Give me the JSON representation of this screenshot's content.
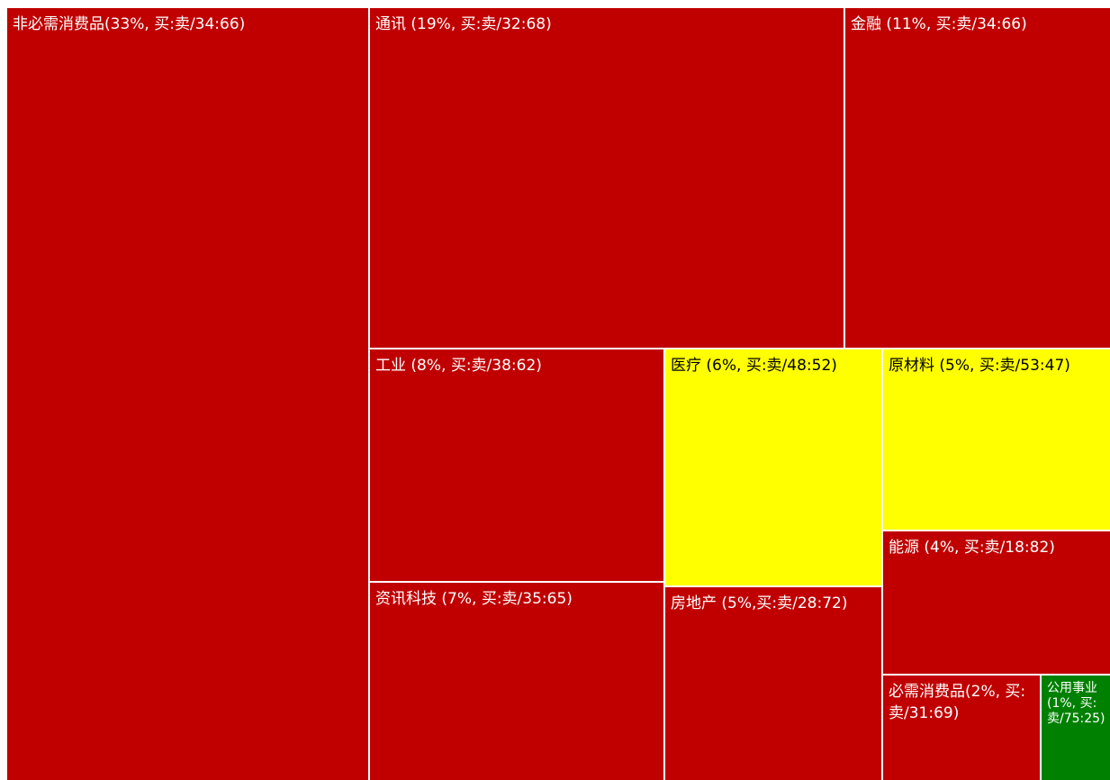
{
  "chart_data": {
    "type": "treemap",
    "colors": {
      "red": "#c00000",
      "yellow": "#ffff00",
      "green": "#008000"
    },
    "items": [
      {
        "label": "非必需消费品(33%, 买:卖/34:66)",
        "weight_pct": 33,
        "buy": 34,
        "sell": 66,
        "color": "red"
      },
      {
        "label": "通讯 (19%, 买:卖/32:68)",
        "weight_pct": 19,
        "buy": 32,
        "sell": 68,
        "color": "red"
      },
      {
        "label": "金融 (11%, 买:卖/34:66)",
        "weight_pct": 11,
        "buy": 34,
        "sell": 66,
        "color": "red"
      },
      {
        "label": "工业 (8%, 买:卖/38:62)",
        "weight_pct": 8,
        "buy": 38,
        "sell": 62,
        "color": "red"
      },
      {
        "label": "医疗 (6%, 买:卖/48:52)",
        "weight_pct": 6,
        "buy": 48,
        "sell": 52,
        "color": "yellow"
      },
      {
        "label": "原材料 (5%, 买:卖/53:47)",
        "weight_pct": 5,
        "buy": 53,
        "sell": 47,
        "color": "yellow"
      },
      {
        "label": "能源 (4%, 买:卖/18:82)",
        "weight_pct": 4,
        "buy": 18,
        "sell": 82,
        "color": "red"
      },
      {
        "label": "资讯科技 (7%, 买:卖/35:65)",
        "weight_pct": 7,
        "buy": 35,
        "sell": 65,
        "color": "red"
      },
      {
        "label": "房地产 (5%,买:卖/28:72)",
        "weight_pct": 5,
        "buy": 28,
        "sell": 72,
        "color": "red"
      },
      {
        "label": "必需消费品(2%, 买:卖/31:69)",
        "weight_pct": 2,
        "buy": 31,
        "sell": 69,
        "color": "red"
      },
      {
        "label": "公用事业 (1%, 买:卖/75:25)",
        "weight_pct": 1,
        "buy": 75,
        "sell": 25,
        "color": "green"
      }
    ]
  }
}
